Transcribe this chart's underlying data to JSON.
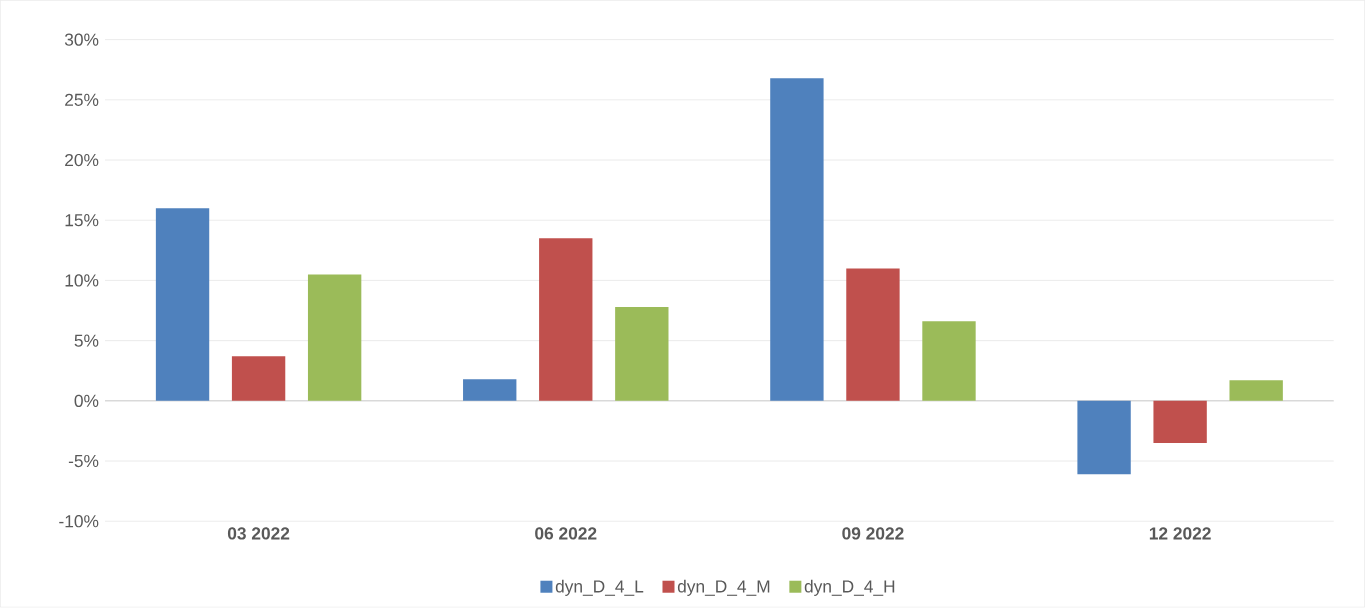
{
  "chart_data": {
    "type": "bar",
    "categories": [
      "03 2022",
      "06 2022",
      "09 2022",
      "12 2022"
    ],
    "series": [
      {
        "name": "dyn_D_4_L",
        "color": "#4f81bd",
        "values": [
          16.0,
          1.8,
          26.8,
          -6.1
        ]
      },
      {
        "name": "dyn_D_4_M",
        "color": "#c0504d",
        "values": [
          3.7,
          13.5,
          11.0,
          -3.5
        ]
      },
      {
        "name": "dyn_D_4_H",
        "color": "#9bbb59",
        "values": [
          10.5,
          7.8,
          6.6,
          1.7
        ]
      }
    ],
    "ylim": [
      -10,
      30
    ],
    "yticks": [
      {
        "value": -10,
        "label": "-10%"
      },
      {
        "value": -5,
        "label": "-5%"
      },
      {
        "value": 0,
        "label": "0%"
      },
      {
        "value": 5,
        "label": "5%"
      },
      {
        "value": 10,
        "label": "10%"
      },
      {
        "value": 15,
        "label": "15%"
      },
      {
        "value": 20,
        "label": "20%"
      },
      {
        "value": 25,
        "label": "25%"
      },
      {
        "value": 30,
        "label": "30%"
      }
    ],
    "grid": "y",
    "legend": "bottom"
  }
}
